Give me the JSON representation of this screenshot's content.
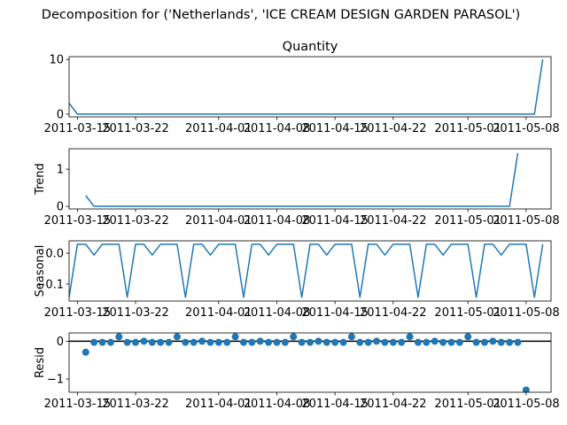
{
  "figure": {
    "title": "Decomposition for ('Netherlands', 'ICE CREAM DESIGN GARDEN PARASOL')"
  },
  "colors": {
    "series": "#1f77b4",
    "zero_line": "#000000",
    "axes": "#000000",
    "background": "#ffffff"
  },
  "x_tick_labels": [
    "2011-03-15",
    "2011-03-22",
    "2011-04-01",
    "2011-04-08",
    "2011-04-15",
    "2011-04-22",
    "2011-05-01",
    "2011-05-08"
  ],
  "chart_data": [
    {
      "type": "line",
      "title": "Quantity",
      "ylabel": "",
      "xlim": [
        "2011-03-14",
        "2011-05-11"
      ],
      "ylim": [
        -0.5,
        10.5
      ],
      "yticks": [
        0,
        10
      ],
      "ytick_labels": [
        "0",
        "10"
      ],
      "x": [
        "2011-03-14",
        "2011-03-15",
        "2011-05-09",
        "2011-05-10"
      ],
      "values": [
        2,
        0,
        0,
        10
      ],
      "note_values": "Quantity is 0 on every day from 2011-03-15 to 2011-05-09 except the endpoints shown."
    },
    {
      "type": "line",
      "title": "",
      "ylabel": "Trend",
      "xlim": [
        "2011-03-14",
        "2011-05-11"
      ],
      "ylim": [
        -0.07,
        1.55
      ],
      "yticks": [
        0,
        1
      ],
      "ytick_labels": [
        "0",
        "1"
      ],
      "x": [
        "2011-03-16",
        "2011-03-17",
        "2011-05-06",
        "2011-05-07"
      ],
      "values": [
        0.29,
        0,
        0,
        1.43
      ]
    },
    {
      "type": "line",
      "title": "",
      "ylabel": "Seasonal",
      "xlim": [
        "2011-03-14",
        "2011-05-11"
      ],
      "ylim": [
        -0.155,
        0.04
      ],
      "yticks": [
        0.0,
        -0.1
      ],
      "ytick_labels": [
        "0.0",
        "−0.1"
      ],
      "period_days": 7,
      "start": "2011-03-14",
      "end": "2011-05-10",
      "pattern": [
        -0.143,
        0.029,
        0.029,
        -0.006,
        0.029,
        0.029,
        0.029
      ],
      "pattern_start": "2011-03-14"
    },
    {
      "type": "scatter",
      "title": "",
      "ylabel": "Resid",
      "xlim": [
        "2011-03-14",
        "2011-05-11"
      ],
      "ylim": [
        -1.35,
        0.22
      ],
      "yticks": [
        0,
        -1
      ],
      "ytick_labels": [
        "0",
        "−1"
      ],
      "zero_line": true,
      "start": "2011-03-16",
      "values": [
        -0.29,
        -0.03,
        -0.03,
        -0.03,
        0.12,
        -0.03,
        -0.03,
        0.0,
        -0.03,
        -0.03,
        -0.03,
        0.12,
        -0.03,
        -0.03,
        0.0,
        -0.03,
        -0.03,
        -0.03,
        0.12,
        -0.03,
        -0.03,
        0.0,
        -0.03,
        -0.03,
        -0.03,
        0.12,
        -0.03,
        -0.03,
        0.0,
        -0.03,
        -0.03,
        -0.03,
        0.12,
        -0.03,
        -0.03,
        0.0,
        -0.03,
        -0.03,
        -0.03,
        0.12,
        -0.03,
        -0.03,
        0.0,
        -0.03,
        -0.03,
        -0.03,
        0.12,
        -0.03,
        -0.03,
        0.0,
        -0.03,
        -0.03,
        -0.03,
        -1.29
      ]
    }
  ]
}
